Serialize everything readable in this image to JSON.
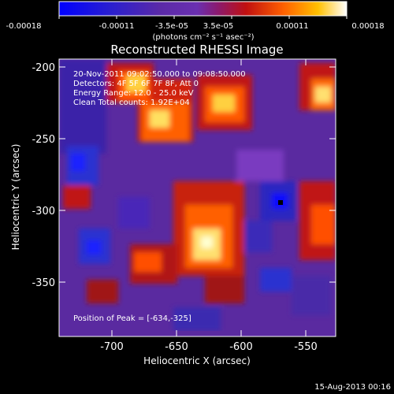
{
  "colorbar": {
    "tick_labels": [
      "-0.00018",
      "-0.00011",
      "-3.5e-05",
      "3.5e-05",
      "0.00011",
      "0.00018"
    ],
    "unit_label": "(photons cm⁻² s⁻¹ asec⁻²)"
  },
  "plot": {
    "title": "Reconstructed RHESSI Image",
    "xlabel": "Heliocentric X (arcsec)",
    "ylabel": "Heliocentric Y (arcsec)",
    "x_ticks": [
      "-700",
      "-650",
      "-600",
      "-550"
    ],
    "y_ticks": [
      "-200",
      "-250",
      "-300",
      "-350"
    ],
    "annotations": {
      "time": "20-Nov-2011 09:02:50.000 to 09:08:50.000",
      "detectors": "Detectors: 4F 5F 6F 7F 8F, Att 0",
      "energy": "Energy Range: 12.0 - 25.0 keV",
      "method": "Clean     Total counts: 1.92E+04",
      "peak": "Position of Peak = [-634,-325]"
    }
  },
  "footer": {
    "date": "15-Aug-2013 00:16"
  },
  "colors": {
    "background": "#000000",
    "axis": "#ffffff",
    "low": "#0000ff",
    "mid": "#6a2fb0",
    "high": "#ffffff"
  }
}
